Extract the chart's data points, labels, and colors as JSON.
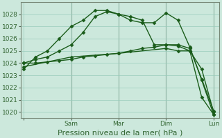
{
  "title": "",
  "xlabel": "Pression niveau de la mer( hPa )",
  "background_color": "#cce8dc",
  "grid_color": "#99ccbb",
  "line_color": "#1a5c1a",
  "ylim": [
    1019.5,
    1029.0
  ],
  "xlim": [
    -0.5,
    33
  ],
  "xticks": [
    0,
    8,
    16,
    24,
    32
  ],
  "xtick_labels": [
    "",
    "Sam",
    "Mar",
    "Dim",
    "Lun"
  ],
  "yticks": [
    1020,
    1021,
    1022,
    1023,
    1024,
    1025,
    1026,
    1027,
    1028
  ],
  "series": [
    {
      "x": [
        0,
        2,
        4,
        6,
        8,
        10,
        12,
        14,
        16,
        18,
        20,
        22,
        24,
        26,
        28,
        30,
        32
      ],
      "y": [
        1023.5,
        1024.5,
        1025.0,
        1026.0,
        1027.0,
        1027.5,
        1028.3,
        1028.3,
        1028.0,
        1027.5,
        1027.3,
        1027.3,
        1028.1,
        1027.5,
        1025.3,
        1022.6,
        1019.8
      ],
      "marker": "D",
      "markersize": 2.5,
      "linewidth": 1.0
    },
    {
      "x": [
        0,
        2,
        4,
        6,
        8,
        10,
        12,
        14,
        16,
        18,
        20,
        22,
        24,
        26,
        28,
        30,
        32
      ],
      "y": [
        1024.0,
        1024.3,
        1024.5,
        1025.0,
        1025.5,
        1026.5,
        1027.8,
        1028.2,
        1028.0,
        1027.8,
        1027.5,
        1025.5,
        1025.5,
        1025.5,
        1025.2,
        1022.7,
        1020.1
      ],
      "marker": "D",
      "markersize": 2.5,
      "linewidth": 1.0
    },
    {
      "x": [
        0,
        2,
        4,
        6,
        8,
        10,
        12,
        14,
        16,
        18,
        20,
        22,
        24,
        26,
        28,
        30,
        32
      ],
      "y": [
        1024.0,
        1024.0,
        1024.1,
        1024.2,
        1024.3,
        1024.5,
        1024.6,
        1024.7,
        1024.8,
        1025.0,
        1025.2,
        1025.3,
        1025.5,
        1025.4,
        1025.0,
        1023.5,
        1020.0
      ],
      "marker": "D",
      "markersize": 2.5,
      "linewidth": 1.0
    },
    {
      "x": [
        0,
        8,
        16,
        24,
        26,
        28,
        30,
        32
      ],
      "y": [
        1023.7,
        1024.5,
        1024.8,
        1025.2,
        1025.0,
        1025.0,
        1021.2,
        1019.8
      ],
      "marker": "D",
      "markersize": 2.5,
      "linewidth": 1.0
    }
  ],
  "vline_color": "#778877",
  "vline_positions": [
    8,
    16,
    24,
    32
  ],
  "tick_fontsize": 6.5,
  "xlabel_fontsize": 8
}
